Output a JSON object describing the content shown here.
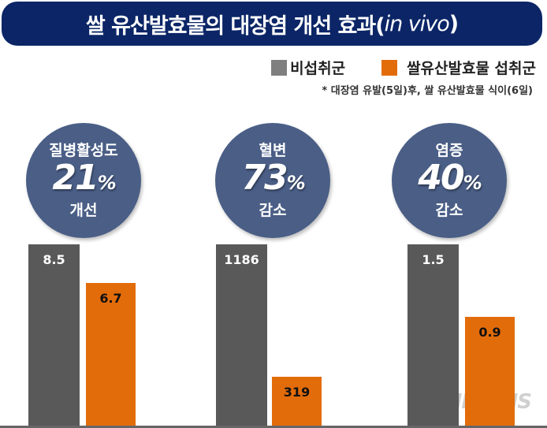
{
  "title": {
    "main": "쌀 유산발효물의 대장염  개선 효과(",
    "italic": "in vivo",
    "close": ")"
  },
  "legend": [
    {
      "label": "비섭취군",
      "color": "#7f7f7f"
    },
    {
      "label": "쌀유산발효물 섭취군",
      "color": "#e36c0a"
    }
  ],
  "note": "* 대장염 유발(5일)후, 쌀 유산발효물 식이(6일)",
  "watermark": "NEWSIS",
  "chart_data": {
    "type": "bar",
    "categories": [
      "질병활성도",
      "혈변",
      "염증"
    ],
    "series": [
      {
        "name": "비섭취군",
        "values": [
          8.5,
          1186,
          1.5
        ],
        "labels": [
          "8.5",
          "1186",
          "1.5"
        ],
        "color": "#595959"
      },
      {
        "name": "쌀유산발효물 섭취군",
        "values": [
          6.7,
          319,
          0.9
        ],
        "labels": [
          "6.7",
          "319",
          "0.9"
        ],
        "color": "#e36c0a"
      }
    ],
    "annotations": [
      {
        "top": "질병활성도",
        "pct": "21",
        "unit": "%",
        "bottom": "개선"
      },
      {
        "top": "혈변",
        "pct": "73",
        "unit": "%",
        "bottom": "감소"
      },
      {
        "top": "염증",
        "pct": "40",
        "unit": "%",
        "bottom": "감소"
      }
    ]
  }
}
